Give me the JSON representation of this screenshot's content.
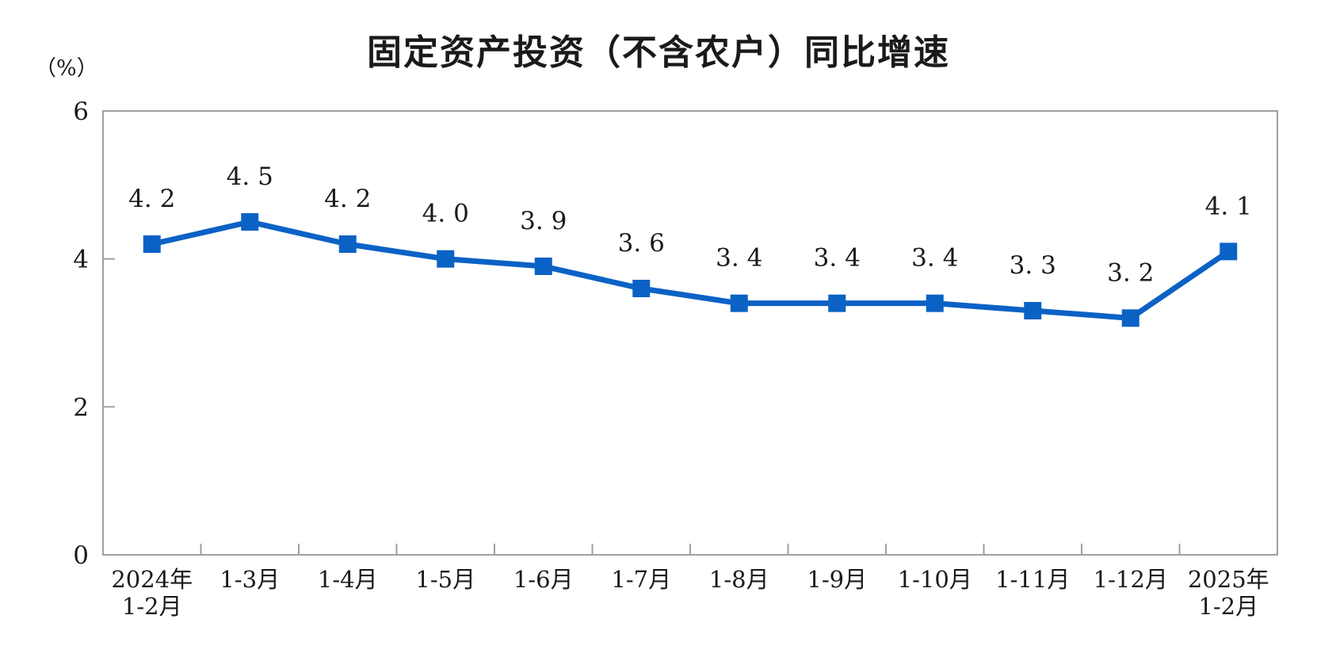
{
  "chart_data": {
    "type": "line",
    "title": "固定资产投资（不含农户）同比增速",
    "unit_label": "（%）",
    "categories": [
      "2024年\n1-2月",
      "1-3月",
      "1-4月",
      "1-5月",
      "1-6月",
      "1-7月",
      "1-8月",
      "1-9月",
      "1-10月",
      "1-11月",
      "1-12月",
      "2025年\n1-2月"
    ],
    "series": [
      {
        "name": "固定资产投资（不含农户）同比增速",
        "values": [
          4.2,
          4.5,
          4.2,
          4.0,
          3.9,
          3.6,
          3.4,
          3.4,
          3.4,
          3.3,
          3.2,
          4.1
        ]
      }
    ],
    "data_labels": [
      "4.2",
      "4.5",
      "4.2",
      "4.0",
      "3.9",
      "3.6",
      "3.4",
      "3.4",
      "3.4",
      "3.3",
      "3.2",
      "4.1"
    ],
    "xlabel": "",
    "ylabel": "（%）",
    "ylim": [
      0,
      6
    ],
    "yticks": [
      0,
      2,
      4,
      6
    ],
    "grid": "off",
    "legend": "none",
    "colors": {
      "line": "#0B62C5",
      "marker": "#0B62C5",
      "axis": "#A0A0A0",
      "text": "#000000"
    }
  }
}
